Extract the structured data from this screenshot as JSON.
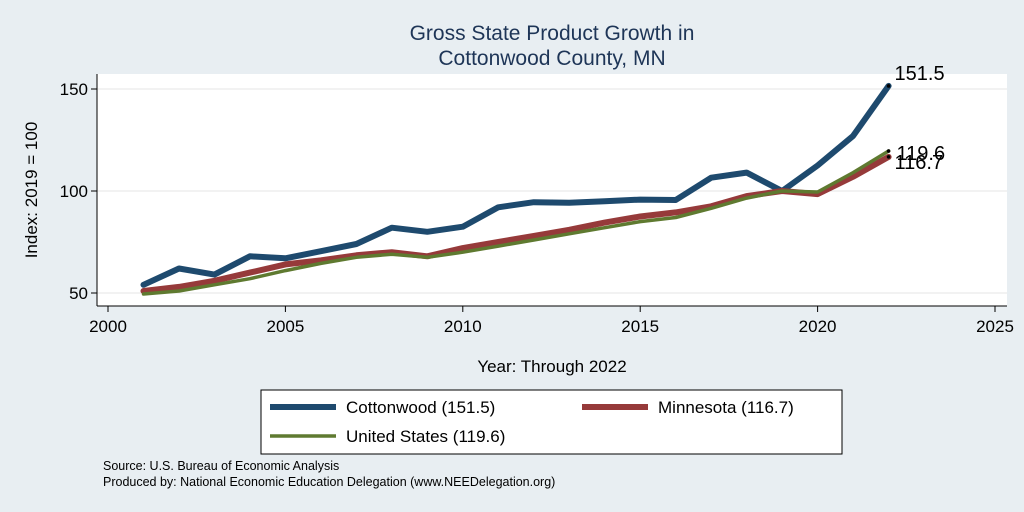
{
  "chart_data": {
    "type": "line",
    "title": [
      "Gross State Product Growth in",
      "Cottonwood County, MN"
    ],
    "xlabel": "Year: Through 2022",
    "ylabel": "Index: 2019 = 100",
    "xlim": [
      2000,
      2025
    ],
    "ylim": [
      45,
      155
    ],
    "x_ticks": [
      2000,
      2005,
      2010,
      2015,
      2020,
      2025
    ],
    "y_ticks": [
      50,
      100,
      150
    ],
    "grid": "horizontal",
    "legend_position": "bottom",
    "x": [
      2001,
      2002,
      2003,
      2004,
      2005,
      2006,
      2007,
      2008,
      2009,
      2010,
      2011,
      2012,
      2013,
      2014,
      2015,
      2016,
      2017,
      2018,
      2019,
      2020,
      2021,
      2022
    ],
    "series": [
      {
        "name": "Cottonwood  (151.5)",
        "color": "#1e4a6e",
        "values": [
          54,
          62,
          59,
          68,
          67,
          70.5,
          74,
          82,
          80,
          82.5,
          92,
          94.5,
          94.2,
          95,
          95.8,
          95.6,
          106.5,
          109,
          100,
          112.5,
          127,
          151.5
        ],
        "end_label": "151.5"
      },
      {
        "name": "Minnesota (116.7)",
        "color": "#963a3a",
        "values": [
          51,
          53,
          56,
          60,
          64,
          66,
          68.5,
          70,
          68,
          72,
          75,
          78,
          81,
          84.5,
          87.5,
          89.5,
          92.5,
          97.5,
          100,
          98.5,
          107,
          116.7
        ],
        "end_label": "116.7"
      },
      {
        "name": "United States (119.6)",
        "color": "#5f7a30",
        "values": [
          49.5,
          51,
          54,
          57,
          61,
          64.5,
          67.5,
          69,
          67.5,
          70,
          73,
          76,
          79,
          82,
          85,
          87,
          91.5,
          96.5,
          100,
          99.5,
          109,
          119.6
        ],
        "end_label": "119.6"
      }
    ],
    "source_lines": [
      "Source: U.S. Bureau of Economic Analysis",
      "Produced by: National Economic Education Delegation (www.NEEDelegation.org)"
    ]
  }
}
